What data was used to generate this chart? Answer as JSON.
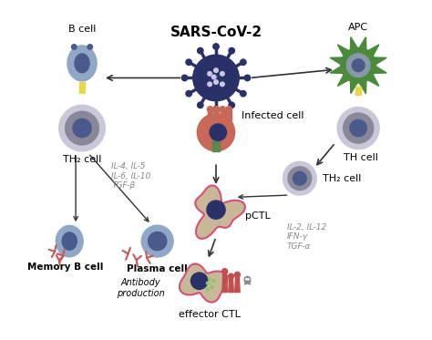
{
  "title": "SARS-CoV-2",
  "title_fontsize": 14,
  "title_bold": true,
  "background_color": "#ffffff",
  "labels": {
    "b_cell": "B cell",
    "apc": "APC",
    "th2_left": "TH₂ cell",
    "th_right": "TH cell",
    "th2_right": "TH₂ cell",
    "infected_cell": "Infected cell",
    "pctl": "pCTL",
    "effector_ctl": "effector CTL",
    "memory_b": "Memory B cell",
    "plasma_cell": "Plasma cell",
    "antibody_prod": "Antibody\nproduction",
    "cytokines_left": "IL-4, IL-5\nIL-6, IL-10\nTGF-β",
    "cytokines_right": "IL-2, IL-12\nIFN-γ\nTGF-α"
  },
  "colors": {
    "b_cell_outer": "#8fa8c8",
    "b_cell_inner": "#4a5a8a",
    "th2_outer": "#c8c8d8",
    "th2_inner": "#4a5a8a",
    "th2_mid": "#888898",
    "apc_green": "#4a8a3a",
    "apc_inner": "#8898a8",
    "apc_nucleus": "#4a5a8a",
    "virus_outer": "#2a3068",
    "virus_dots": "#c8c8e8",
    "infected_cell_body": "#c86858",
    "infected_cell_nucleus": "#2a3068",
    "pctl_body": "#c8b898",
    "pctl_outline": "#d8507a",
    "pctl_nucleus": "#2a3068",
    "effector_body": "#c8b898",
    "effector_outline": "#d8507a",
    "effector_nucleus": "#2a3068",
    "memory_b_outer": "#8fa8c8",
    "memory_b_inner": "#4a5a8a",
    "plasma_outer": "#8fa8c8",
    "plasma_inner": "#4a5a8a",
    "antibody_color": "#c85858",
    "arrow_color": "#333333",
    "cytokine_text": "#888888",
    "connector_yellow": "#e8d848",
    "skull_color": "#888888",
    "green_dots": "#88c868"
  },
  "figsize": [
    4.74,
    3.73
  ],
  "dpi": 100
}
